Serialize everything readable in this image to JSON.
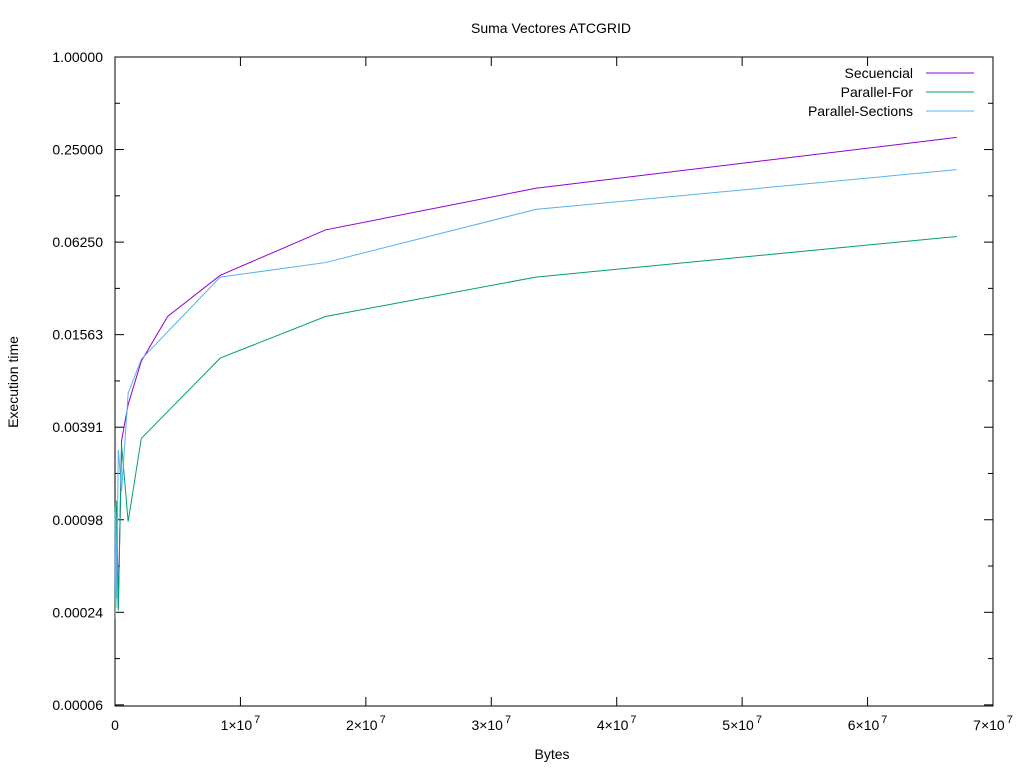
{
  "chart_data": {
    "type": "line",
    "title": "Suma Vectores ATCGRID",
    "xlabel": "Bytes",
    "ylabel": "Execution time",
    "xlim": [
      0,
      70000000
    ],
    "ylim": [
      6e-05,
      1.0
    ],
    "yscale": "log",
    "grid": false,
    "legend_position": "top-right",
    "x_ticks": [
      {
        "value": 0,
        "mant": "0",
        "exp": ""
      },
      {
        "value": 10000000,
        "mant": "1×10",
        "exp": "7"
      },
      {
        "value": 20000000,
        "mant": "2×10",
        "exp": "7"
      },
      {
        "value": 30000000,
        "mant": "3×10",
        "exp": "7"
      },
      {
        "value": 40000000,
        "mant": "4×10",
        "exp": "7"
      },
      {
        "value": 50000000,
        "mant": "5×10",
        "exp": "7"
      },
      {
        "value": 60000000,
        "mant": "6×10",
        "exp": "7"
      },
      {
        "value": 70000000,
        "mant": "7×10",
        "exp": "7"
      }
    ],
    "y_ticks": [
      {
        "value": 1.0,
        "label": "1.00000"
      },
      {
        "value": 0.25,
        "label": "0.25000"
      },
      {
        "value": 0.0625,
        "label": "0.06250"
      },
      {
        "value": 0.015625,
        "label": "0.01563"
      },
      {
        "value": 0.00390625,
        "label": "0.00391"
      },
      {
        "value": 0.0009765625,
        "label": "0.00098"
      },
      {
        "value": 0.000244140625,
        "label": "0.00024"
      },
      {
        "value": 6.103515625e-05,
        "label": "0.00006"
      }
    ],
    "series": [
      {
        "name": "Secuencial",
        "color": "#9400d3",
        "points": [
          [
            16384,
            0.0004
          ],
          [
            32768,
            0.0011
          ],
          [
            65536,
            0.00035
          ],
          [
            131072,
            0.0012
          ],
          [
            262144,
            0.00026
          ],
          [
            524288,
            0.0032
          ],
          [
            1048576,
            0.0055
          ],
          [
            2097152,
            0.0105
          ],
          [
            4194304,
            0.0205
          ],
          [
            8388608,
            0.038
          ],
          [
            16777216,
            0.075
          ],
          [
            33554432,
            0.14
          ],
          [
            67108864,
            0.3
          ]
        ]
      },
      {
        "name": "Parallel-For",
        "color": "#009e73",
        "points": [
          [
            16384,
            0.0012
          ],
          [
            32768,
            0.0003
          ],
          [
            65536,
            0.00026
          ],
          [
            131072,
            0.0013
          ],
          [
            262144,
            0.00025
          ],
          [
            524288,
            0.003
          ],
          [
            1048576,
            0.00095
          ],
          [
            2097152,
            0.0033
          ],
          [
            8388608,
            0.011
          ],
          [
            16777216,
            0.0205
          ],
          [
            33554432,
            0.037
          ],
          [
            67108864,
            0.068
          ]
        ]
      },
      {
        "name": "Parallel-Sections",
        "color": "#56b4e9",
        "points": [
          [
            16384,
            0.0011
          ],
          [
            32768,
            0.00022
          ],
          [
            65536,
            0.0011
          ],
          [
            131072,
            0.0003
          ],
          [
            262144,
            0.0028
          ],
          [
            524288,
            0.0015
          ],
          [
            1048576,
            0.0065
          ],
          [
            2097152,
            0.0108
          ],
          [
            8388608,
            0.037
          ],
          [
            16777216,
            0.046
          ],
          [
            33554432,
            0.102
          ],
          [
            67108864,
            0.185
          ]
        ]
      }
    ]
  }
}
